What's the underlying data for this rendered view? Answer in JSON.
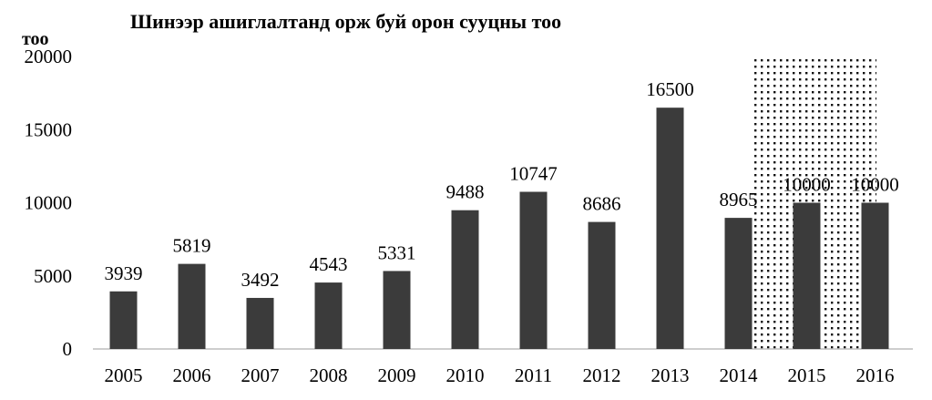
{
  "chart_data": {
    "type": "bar",
    "title": "Шинээр ашиглалтанд орж буй орон сууцны тоо",
    "ylabel": "тоо",
    "xlabel": "",
    "categories": [
      "2005",
      "2006",
      "2007",
      "2008",
      "2009",
      "2010",
      "2011",
      "2012",
      "2013",
      "2014",
      "2015",
      "2016"
    ],
    "values": [
      3939,
      5819,
      3492,
      4543,
      5331,
      9488,
      10747,
      8686,
      16500,
      8965,
      10000,
      10000
    ],
    "ylim": [
      0,
      20000
    ],
    "yticks": [
      0,
      5000,
      10000,
      15000,
      20000
    ],
    "grid": false,
    "legend": "none",
    "bar_color": "#3b3b3b",
    "highlight": {
      "from": "2014",
      "to": "2016",
      "pattern": "dotted"
    }
  }
}
